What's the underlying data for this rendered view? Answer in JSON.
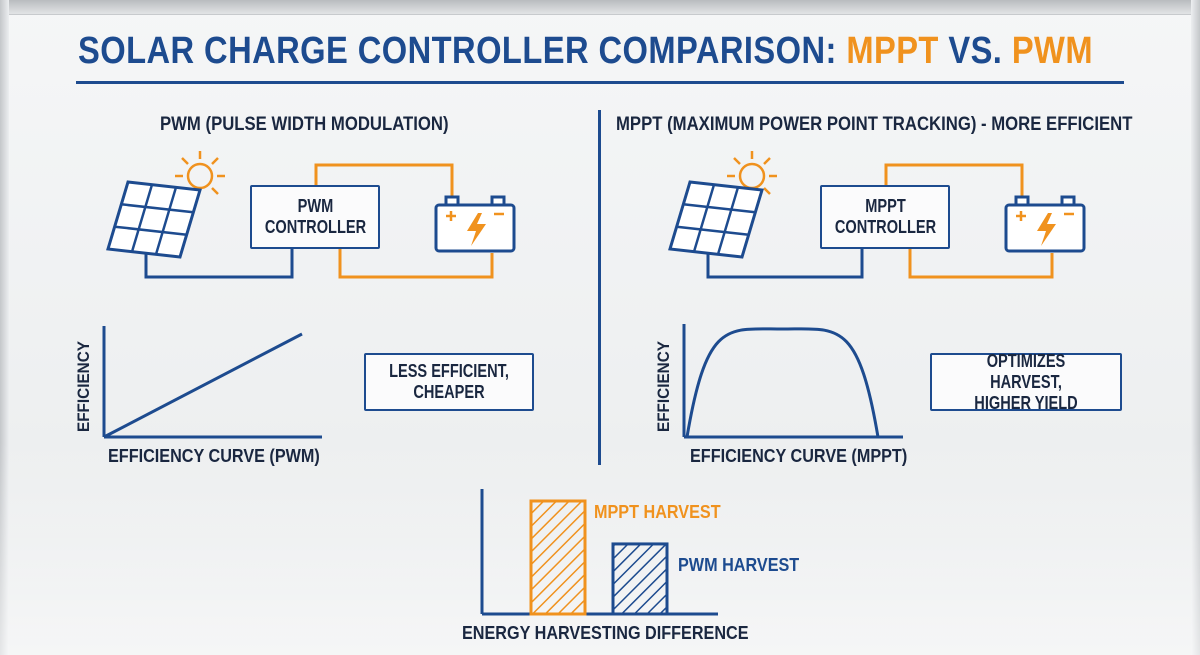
{
  "title": {
    "main": "SOLAR CHARGE CONTROLLER COMPARISON: ",
    "mppt": "MPPT",
    "vs": " VS. ",
    "pwm": "PWM"
  },
  "colors": {
    "blue": "#1d4b8f",
    "orange": "#f0921e",
    "text": "#1a2740"
  },
  "pwm_section": {
    "heading": "PWM (PULSE WIDTH MODULATION)",
    "controller_line1": "PWM",
    "controller_line2": "CONTROLLER",
    "note_line1": "LESS EFFICIENT,",
    "note_line2": "CHEAPER",
    "ylabel": "EFFICIENCY",
    "caption": "EFFICIENCY CURVE (PWM)",
    "icons": [
      "sun-icon",
      "solar-panel-icon",
      "battery-icon"
    ]
  },
  "mppt_section": {
    "heading": "MPPT (MAXIMUM POWER POINT TRACKING) - MORE EFFICIENT",
    "controller_line1": "MPPT",
    "controller_line2": "CONTROLLER",
    "note_line1": "OPTIMIZES HARVEST,",
    "note_line2": "HIGHER YIELD",
    "ylabel": "EFFICIENCY",
    "caption": "EFFICIENCY CURVE (MPPT)",
    "icons": [
      "sun-icon",
      "solar-panel-icon",
      "battery-icon"
    ]
  },
  "harvest": {
    "caption": "ENERGY HARVESTING DIFFERENCE",
    "mppt_label": "MPPT HARVEST",
    "pwm_label": "PWM HARVEST"
  },
  "chart_data": [
    {
      "type": "line",
      "title": "EFFICIENCY CURVE (PWM)",
      "ylabel": "EFFICIENCY",
      "shape": "linear increasing",
      "x": [
        0,
        1
      ],
      "y": [
        0,
        1
      ]
    },
    {
      "type": "line",
      "title": "EFFICIENCY CURVE (MPPT)",
      "ylabel": "EFFICIENCY",
      "shape": "arch with single peak",
      "x": [
        0,
        0.5,
        1
      ],
      "y": [
        0,
        1,
        0
      ]
    },
    {
      "type": "bar",
      "title": "ENERGY HARVESTING DIFFERENCE",
      "categories": [
        "MPPT HARVEST",
        "PWM HARVEST"
      ],
      "values": [
        1.0,
        0.62
      ],
      "colors": [
        "#f0921e",
        "#1d4b8f"
      ],
      "pattern": "diagonal hatch"
    }
  ]
}
